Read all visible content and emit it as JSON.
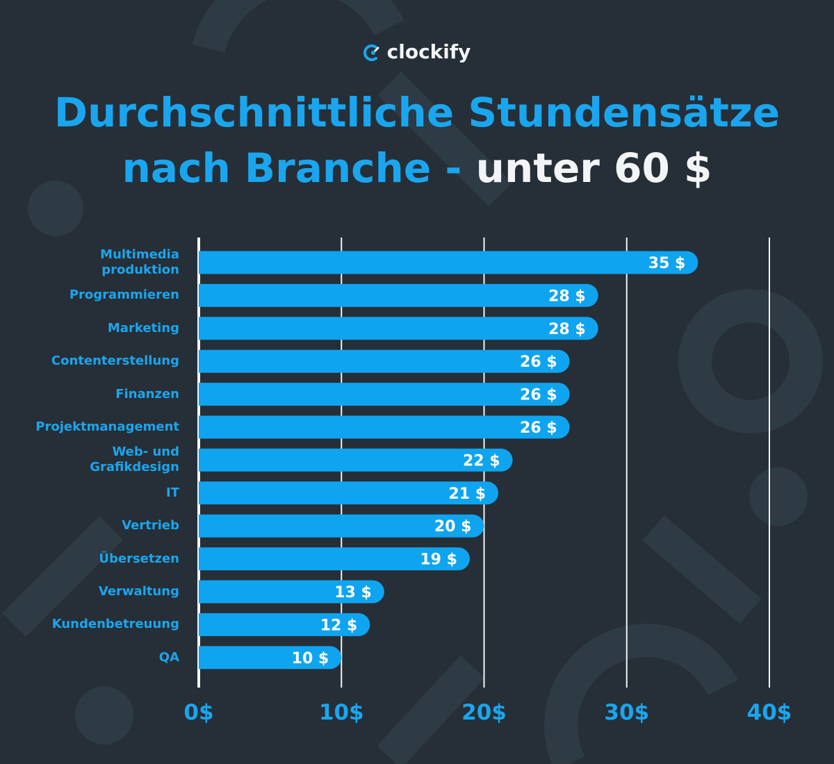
{
  "brand": "clockify",
  "chart_data": {
    "type": "barh",
    "title": "Durchschnittliche Stundensätze nach Branche -",
    "title_emphasis": "unter 60 $",
    "categories": [
      "Multimedia\nproduktion",
      "Programmieren",
      "Marketing",
      "Contenterstellung",
      "Finanzen",
      "Projektmanagement",
      "Web- und\nGrafikdesign",
      "IT",
      "Vertrieb",
      "Übersetzen",
      "Verwaltung",
      "Kundenbetreuung",
      "QA"
    ],
    "values": [
      35,
      28,
      28,
      26,
      26,
      26,
      22,
      21,
      20,
      19,
      13,
      12,
      10
    ],
    "value_labels": [
      "35 $",
      "28 $",
      "28 $",
      "26 $",
      "26 $",
      "26 $",
      "22 $",
      "21 $",
      "20 $",
      "19 $",
      "13 $",
      "12 $",
      "10 $"
    ],
    "color": "#0fa4f0",
    "xlim": [
      0,
      40
    ],
    "xticks": [
      {
        "value": 0,
        "label": "0$"
      },
      {
        "value": 10,
        "label": "10$"
      },
      {
        "value": 20,
        "label": "20$"
      },
      {
        "value": 30,
        "label": "30$"
      },
      {
        "value": 40,
        "label": "40$"
      }
    ],
    "grid": true
  }
}
